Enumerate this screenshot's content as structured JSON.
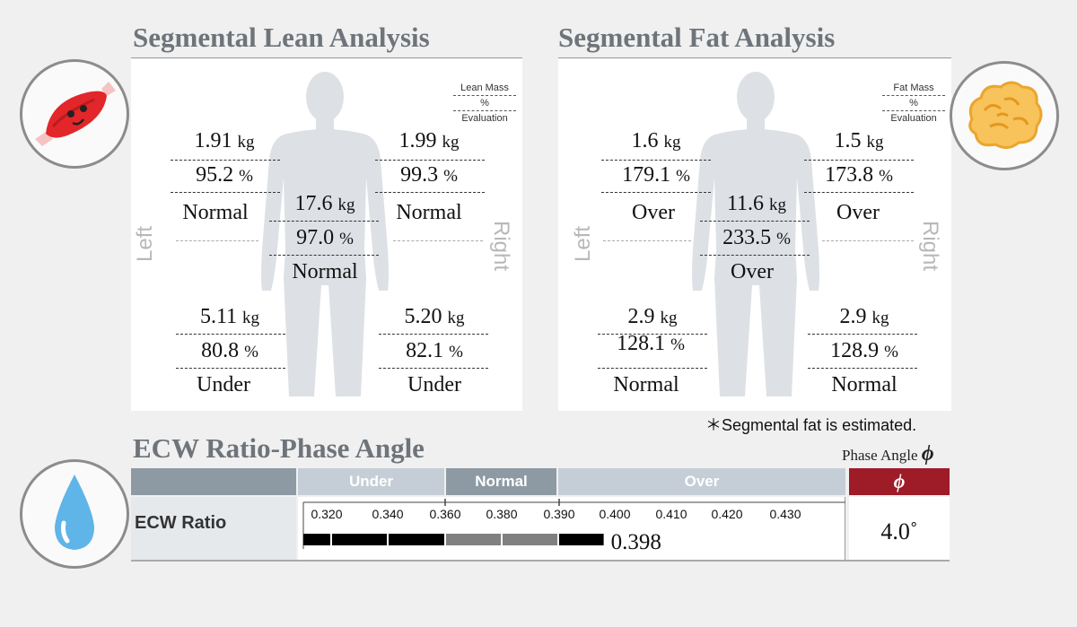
{
  "lean": {
    "title": "Segmental Lean Analysis",
    "legend": [
      "Lean Mass",
      "%",
      "Evaluation"
    ],
    "left_arm": {
      "mass": "1.91",
      "pct": "95.2",
      "eval": "Normal"
    },
    "right_arm": {
      "mass": "1.99",
      "pct": "99.3",
      "eval": "Normal"
    },
    "trunk": {
      "mass": "17.6",
      "pct": "97.0",
      "eval": "Normal"
    },
    "left_leg": {
      "mass": "5.11",
      "pct": "80.8",
      "eval": "Under"
    },
    "right_leg": {
      "mass": "5.20",
      "pct": "82.1",
      "eval": "Under"
    }
  },
  "fat": {
    "title": "Segmental Fat Analysis",
    "legend": [
      "Fat Mass",
      "%",
      "Evaluation"
    ],
    "left_arm": {
      "mass": "1.6",
      "pct": "179.1",
      "eval": "Over"
    },
    "right_arm": {
      "mass": "1.5",
      "pct": "173.8",
      "eval": "Over"
    },
    "trunk": {
      "mass": "11.6",
      "pct": "233.5",
      "eval": "Over"
    },
    "left_leg": {
      "mass": "2.9",
      "pct": "128.1",
      "eval": "Normal"
    },
    "right_leg": {
      "mass": "2.9",
      "pct": "128.9",
      "eval": "Normal"
    },
    "note": "＊Segmental fat is estimated."
  },
  "units": {
    "kg": "kg",
    "pct": "%"
  },
  "side": {
    "left": "Left",
    "right": "Right"
  },
  "ecw": {
    "title": "ECW Ratio-Phase Angle",
    "phase_label": "Phase Angle",
    "phi": "ϕ",
    "range_under": "Under",
    "range_normal": "Normal",
    "range_over": "Over",
    "row_label": "ECW Ratio",
    "ticks": [
      "0.320",
      "0.340",
      "0.360",
      "0.380",
      "0.390",
      "0.400",
      "0.410",
      "0.420",
      "0.430"
    ],
    "value": "0.398",
    "value_num": 0.398,
    "phase_value": "4.0˚"
  },
  "colors": {
    "title_gray": "#6e747a",
    "header_light": "#c5ced6",
    "header_dark": "#8e9aa3",
    "phi_red": "#9e1b28",
    "bar_black": "#000000",
    "bar_gray": "#808080"
  },
  "icons": {
    "muscle": "muscle-icon",
    "fat": "fat-cell-icon",
    "water": "water-drop-icon"
  }
}
